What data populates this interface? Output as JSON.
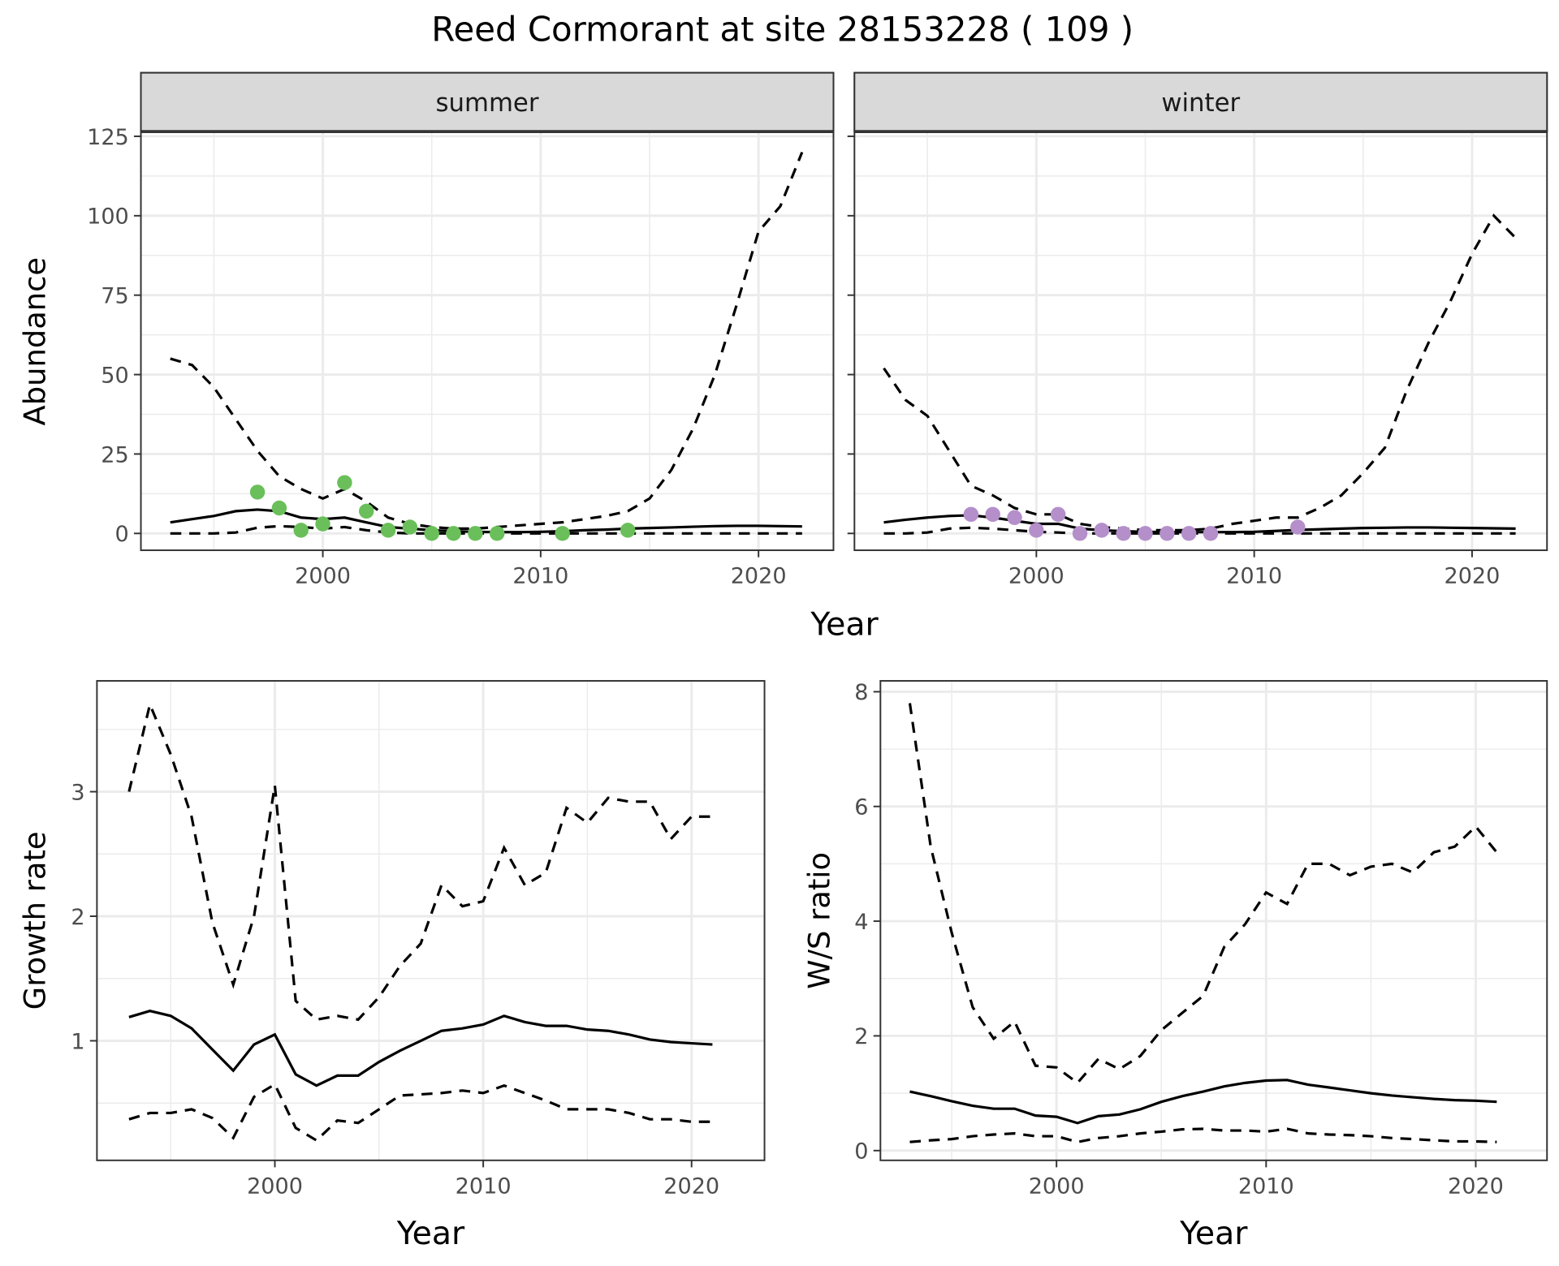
{
  "title": "Reed Cormorant at site 28153228 ( 109 )",
  "colors": {
    "summer_points": "#6abf5a",
    "winter_points": "#b48fca",
    "lines": "#000000",
    "strip": "#d9d9d9",
    "grid": "#ebebeb"
  },
  "chart_data": [
    {
      "type": "line",
      "facet": "summer",
      "xlabel": "Year",
      "ylabel": "Abundance",
      "xlim": [
        1991.65,
        2023.44
      ],
      "ylim": [
        -5.3,
        145
      ],
      "xticks": [
        2000,
        2010,
        2020
      ],
      "yticks": [
        0,
        25,
        50,
        75,
        100,
        125
      ],
      "grid": true,
      "x": [
        1993,
        1994,
        1995,
        1996,
        1997,
        1998,
        1999,
        2000,
        2001,
        2002,
        2003,
        2004,
        2005,
        2006,
        2007,
        2008,
        2009,
        2010,
        2011,
        2012,
        2013,
        2014,
        2015,
        2016,
        2017,
        2018,
        2019,
        2020,
        2021,
        2022
      ],
      "lines": [
        {
          "style": "solid",
          "values": [
            3.5,
            4.5,
            5.5,
            7,
            7.5,
            7,
            5,
            4.5,
            5,
            3.5,
            2,
            1.5,
            1,
            0.7,
            0.5,
            0.4,
            0.4,
            0.5,
            0.7,
            1,
            1.2,
            1.5,
            1.7,
            1.9,
            2.1,
            2.3,
            2.4,
            2.4,
            2.3,
            2.2
          ]
        },
        {
          "style": "dashed",
          "values": [
            55,
            53,
            46,
            36,
            26,
            18,
            14,
            11,
            14,
            10,
            5,
            3,
            2,
            1.5,
            1.5,
            2,
            2.5,
            3,
            3.5,
            4.5,
            5.5,
            7,
            11,
            20,
            33,
            50,
            72,
            95,
            103,
            120
          ]
        },
        {
          "style": "dashed",
          "values": [
            0,
            0,
            0,
            0.3,
            1.8,
            2.3,
            2,
            1.5,
            2,
            1,
            0.3,
            0,
            0,
            0,
            0,
            0,
            0,
            0,
            0,
            0,
            0,
            0,
            0,
            0,
            0,
            0,
            0,
            0,
            0,
            0
          ]
        }
      ],
      "points": {
        "x": [
          1997,
          1998,
          1999,
          2000,
          2001,
          2002,
          2003,
          2004,
          2005,
          2006,
          2007,
          2008,
          2011,
          2014
        ],
        "y": [
          13,
          8,
          1,
          3,
          16,
          7,
          1,
          2,
          0,
          0,
          0,
          0,
          0,
          1
        ]
      }
    },
    {
      "type": "line",
      "facet": "winter",
      "xlabel": "Year",
      "xlim": [
        1991.65,
        2023.44
      ],
      "ylim": [
        -5.3,
        145
      ],
      "xticks": [
        2000,
        2010,
        2020
      ],
      "yticks": [
        0,
        25,
        50,
        75,
        100,
        125
      ],
      "grid": true,
      "x": [
        1993,
        1994,
        1995,
        1996,
        1997,
        1998,
        1999,
        2000,
        2001,
        2002,
        2003,
        2004,
        2005,
        2006,
        2007,
        2008,
        2009,
        2010,
        2011,
        2012,
        2013,
        2014,
        2015,
        2016,
        2017,
        2018,
        2019,
        2020,
        2021,
        2022
      ],
      "lines": [
        {
          "style": "solid",
          "values": [
            3.5,
            4.3,
            5,
            5.5,
            5.7,
            5,
            4,
            3,
            3,
            1.5,
            1,
            0.7,
            0.5,
            0.4,
            0.4,
            0.4,
            0.4,
            0.5,
            0.8,
            1.1,
            1.3,
            1.5,
            1.7,
            1.8,
            1.9,
            1.9,
            1.8,
            1.7,
            1.6,
            1.5
          ]
        },
        {
          "style": "dashed",
          "values": [
            52,
            42,
            37,
            26,
            15,
            12,
            8,
            6,
            6,
            3,
            2,
            1.5,
            1,
            1,
            1,
            1.5,
            3,
            4,
            5,
            5,
            8,
            12,
            19,
            27,
            45,
            60,
            73,
            88,
            100,
            93
          ]
        },
        {
          "style": "dashed",
          "values": [
            0,
            0,
            0.3,
            1.5,
            1.8,
            1.5,
            1,
            0.5,
            0.3,
            0,
            0,
            0,
            0,
            0,
            0,
            0,
            0,
            0,
            0,
            0,
            0,
            0,
            0,
            0,
            0,
            0,
            0,
            0,
            0,
            0
          ]
        }
      ],
      "points": {
        "x": [
          1997,
          1998,
          1999,
          2000,
          2001,
          2002,
          2003,
          2004,
          2005,
          2006,
          2007,
          2008,
          2012
        ],
        "y": [
          6,
          6,
          5,
          1,
          6,
          0,
          1,
          0,
          0,
          0,
          0,
          0,
          2
        ]
      }
    },
    {
      "type": "line",
      "xlabel": "Year",
      "ylabel": "Growth rate",
      "xlim": [
        1991.46,
        2023.5
      ],
      "ylim": [
        0.04,
        3.89
      ],
      "xticks": [
        2000,
        2010,
        2020
      ],
      "yticks": [
        1,
        2,
        3
      ],
      "grid": true,
      "x": [
        1993,
        1994,
        1995,
        1996,
        1997,
        1998,
        1999,
        2000,
        2001,
        2002,
        2003,
        2004,
        2005,
        2006,
        2007,
        2008,
        2009,
        2010,
        2011,
        2012,
        2013,
        2014,
        2015,
        2016,
        2017,
        2018,
        2019,
        2020,
        2021
      ],
      "lines": [
        {
          "style": "solid",
          "values": [
            1.19,
            1.24,
            1.2,
            1.1,
            0.93,
            0.76,
            0.97,
            1.05,
            0.73,
            0.64,
            0.72,
            0.72,
            0.83,
            0.92,
            1.0,
            1.08,
            1.1,
            1.13,
            1.2,
            1.15,
            1.12,
            1.12,
            1.09,
            1.08,
            1.05,
            1.01,
            0.99,
            0.98,
            0.97
          ]
        },
        {
          "style": "dashed",
          "values": [
            3.0,
            3.7,
            3.3,
            2.8,
            1.95,
            1.45,
            2.0,
            3.05,
            1.32,
            1.17,
            1.2,
            1.17,
            1.35,
            1.6,
            1.78,
            2.25,
            2.08,
            2.12,
            2.55,
            2.25,
            2.35,
            2.87,
            2.75,
            2.95,
            2.92,
            2.92,
            2.62,
            2.8,
            2.8
          ]
        },
        {
          "style": "dashed",
          "values": [
            0.37,
            0.42,
            0.42,
            0.45,
            0.38,
            0.22,
            0.55,
            0.65,
            0.3,
            0.2,
            0.36,
            0.34,
            0.45,
            0.56,
            0.57,
            0.58,
            0.6,
            0.58,
            0.64,
            0.58,
            0.52,
            0.45,
            0.45,
            0.45,
            0.42,
            0.37,
            0.37,
            0.35,
            0.35
          ]
        }
      ]
    },
    {
      "type": "line",
      "xlabel": "Year",
      "ylabel": "W/S ratio",
      "xlim": [
        1991.6,
        2023.4
      ],
      "ylim": [
        -0.17,
        8.19
      ],
      "xticks": [
        2000,
        2010,
        2020
      ],
      "yticks": [
        0,
        2,
        4,
        6,
        8
      ],
      "grid": true,
      "x": [
        1993,
        1994,
        1995,
        1996,
        1997,
        1998,
        1999,
        2000,
        2001,
        2002,
        2003,
        2004,
        2005,
        2006,
        2007,
        2008,
        2009,
        2010,
        2011,
        2012,
        2013,
        2014,
        2015,
        2016,
        2017,
        2018,
        2019,
        2020,
        2021
      ],
      "lines": [
        {
          "style": "solid",
          "values": [
            1.03,
            0.95,
            0.86,
            0.78,
            0.73,
            0.73,
            0.61,
            0.59,
            0.48,
            0.6,
            0.63,
            0.72,
            0.85,
            0.95,
            1.03,
            1.12,
            1.18,
            1.22,
            1.23,
            1.15,
            1.1,
            1.05,
            1.0,
            0.96,
            0.93,
            0.9,
            0.88,
            0.87,
            0.85
          ]
        },
        {
          "style": "dashed",
          "values": [
            7.8,
            5.3,
            3.8,
            2.5,
            1.95,
            2.25,
            1.48,
            1.45,
            1.18,
            1.6,
            1.42,
            1.65,
            2.1,
            2.4,
            2.7,
            3.55,
            3.95,
            4.5,
            4.3,
            5.0,
            5.0,
            4.8,
            4.95,
            5.0,
            4.85,
            5.2,
            5.3,
            5.65,
            5.2
          ]
        },
        {
          "style": "dashed",
          "values": [
            0.15,
            0.18,
            0.2,
            0.25,
            0.28,
            0.3,
            0.25,
            0.25,
            0.15,
            0.22,
            0.25,
            0.3,
            0.33,
            0.37,
            0.38,
            0.35,
            0.35,
            0.33,
            0.38,
            0.3,
            0.28,
            0.27,
            0.25,
            0.22,
            0.2,
            0.18,
            0.16,
            0.16,
            0.15
          ]
        }
      ]
    }
  ]
}
